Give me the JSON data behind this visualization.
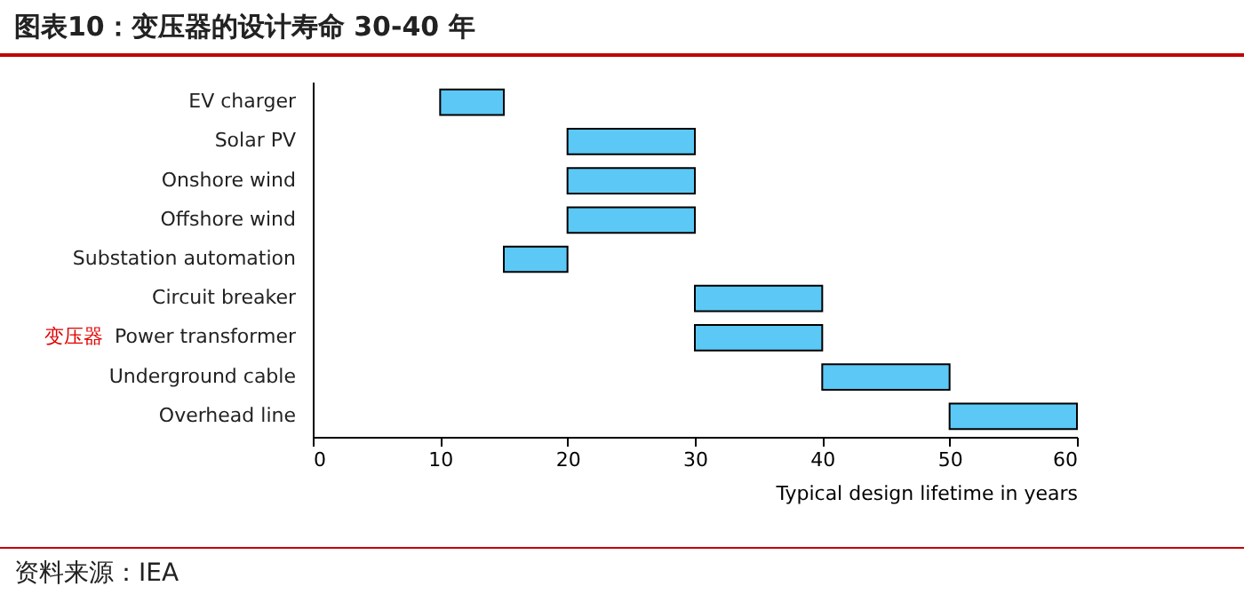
{
  "chart_data": {
    "type": "bar",
    "orientation": "horizontal",
    "title": "图表10：变压器的设计寿命 30-40 年",
    "categories": [
      "EV charger",
      "Solar PV",
      "Onshore wind",
      "Offshore wind",
      "Substation automation",
      "Circuit breaker",
      "Power transformer",
      "Underground cable",
      "Overhead line"
    ],
    "base": [
      10,
      20,
      20,
      20,
      15,
      30,
      30,
      40,
      50
    ],
    "values": [
      5,
      10,
      10,
      10,
      5,
      10,
      10,
      10,
      10
    ],
    "color": "#5bc8f5",
    "xlim": [
      0,
      60
    ],
    "xticks": [
      0,
      10,
      20,
      30,
      40,
      50,
      60
    ],
    "xlabel": "Typical design lifetime in years",
    "grid": false,
    "annotations": [
      "资料来源：IEA",
      "变压器"
    ]
  }
}
